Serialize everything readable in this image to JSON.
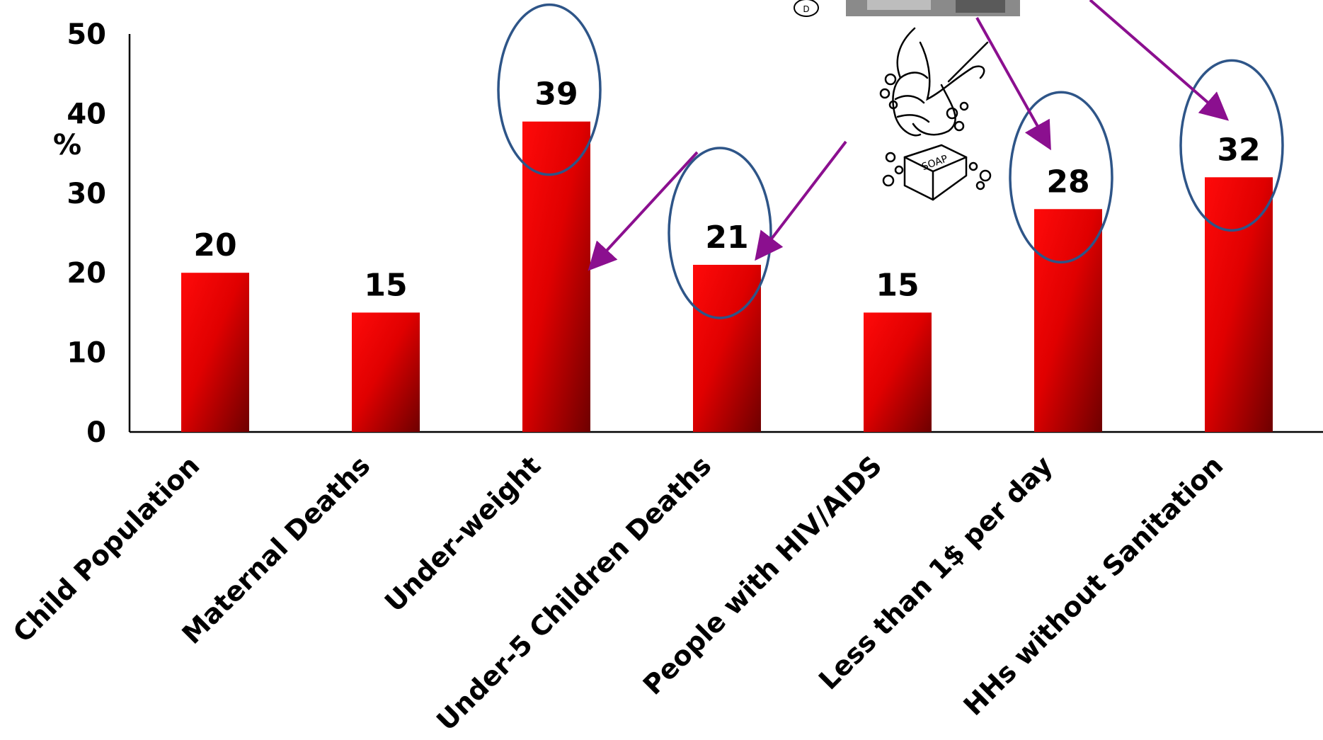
{
  "chart_data": {
    "type": "bar",
    "ylabel": "%",
    "ylim": [
      0,
      50
    ],
    "yticks": [
      0,
      10,
      20,
      30,
      40,
      50
    ],
    "grid": false,
    "legend": "none",
    "categories": [
      "Child Population",
      "Maternal Deaths",
      "Under-weight",
      "Under-5 Children Deaths",
      "People with HIV/AIDS",
      "Less than 1$ per day",
      "HHs without Sanitation"
    ],
    "values": [
      20,
      15,
      39,
      21,
      15,
      28,
      32
    ],
    "data_labels": [
      "20",
      "15",
      "39",
      "21",
      "15",
      "28",
      "32"
    ],
    "highlighted_categories": [
      "Under-weight",
      "Under-5 Children Deaths",
      "Less than 1$ per day",
      "HHs without Sanitation"
    ],
    "colors": {
      "bar_light": "#ff0a0a",
      "bar_dark": "#6e0000",
      "highlight_ellipse": "#2e5588",
      "arrow": "#8b0f8f",
      "axis": "#000000"
    },
    "illustrations": {
      "hand_washing": "hand-washing-soap-icon",
      "photo": "photo-fragment-icon",
      "bubble": "circled-d-icon",
      "soap_label": "SOAP"
    }
  }
}
